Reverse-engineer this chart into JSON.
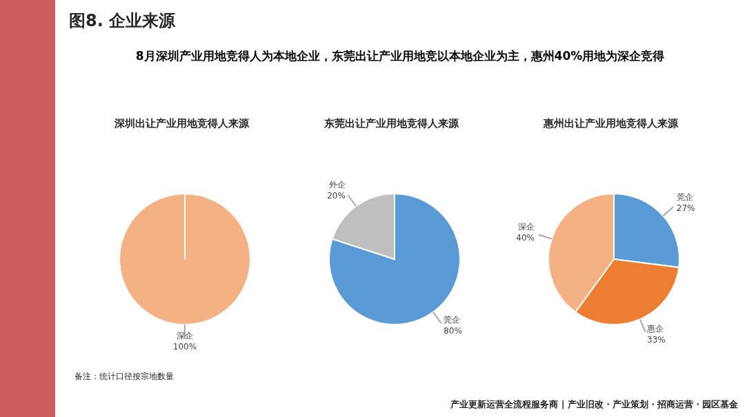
{
  "chart_data": [
    {
      "type": "other",
      "title": "图8. 企业来源",
      "subtitle": "8月深圳产业用地竞得人为本地企业，东莞出让产业用地竞以本地企业为主，惠州40%用地为深企竞得",
      "annotations": [
        "备注：统计口径按宗地数量",
        "产业更新运营全流程服务商 | 产业旧改・产业策划・招商运营・园区基金"
      ]
    },
    {
      "type": "pie",
      "title": "深圳出让产业用地竞得人来源",
      "categories": [
        "深企"
      ],
      "values": [
        100
      ],
      "colors": [
        "#f4b183"
      ],
      "value_labels": [
        "100%"
      ]
    },
    {
      "type": "pie",
      "title": "东莞出让产业用地竞得人来源",
      "categories": [
        "莞企",
        "外企"
      ],
      "values": [
        80,
        20
      ],
      "colors": [
        "#5b9bd5",
        "#bfbfbf"
      ],
      "value_labels": [
        "80%",
        "20%"
      ]
    },
    {
      "type": "pie",
      "title": "惠州出让产业用地竞得人来源",
      "categories": [
        "莞企",
        "惠企",
        "深企"
      ],
      "values": [
        27,
        33,
        40
      ],
      "colors": [
        "#5b9bd5",
        "#ed7d31",
        "#f4b183"
      ],
      "value_labels": [
        "27%",
        "33%",
        "40%"
      ]
    }
  ]
}
